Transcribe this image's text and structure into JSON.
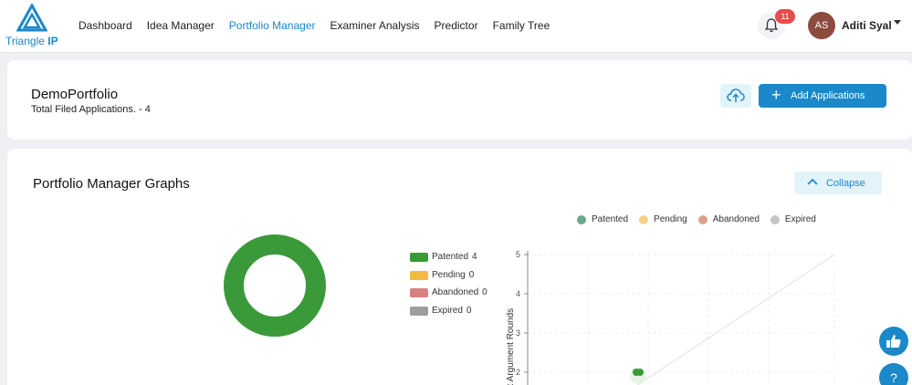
{
  "brand": {
    "name_part1": "Triangle",
    "name_part2": "IP"
  },
  "nav": {
    "items": [
      {
        "label": "Dashboard"
      },
      {
        "label": "Idea Manager"
      },
      {
        "label": "Portfolio Manager"
      },
      {
        "label": "Examiner Analysis"
      },
      {
        "label": "Predictor"
      },
      {
        "label": "Family Tree"
      }
    ],
    "active_index": 2
  },
  "notifications": {
    "count": "11",
    "icon": "bell-icon"
  },
  "user": {
    "initials": "AS",
    "name": "Aditi Syal"
  },
  "portfolio": {
    "title": "DemoPortfolio",
    "subtitle": "Total Filed Applications. - 4",
    "add_label": "Add Applications",
    "upload_icon": "cloud-upload-icon"
  },
  "graphs": {
    "title": "Portfolio Manager Graphs",
    "collapse_label": "Collapse"
  },
  "status_legend": [
    {
      "label": "Patented",
      "value": "4",
      "color": "#3a9a3a"
    },
    {
      "label": "Pending",
      "value": "0",
      "color": "#f5b942"
    },
    {
      "label": "Abandoned",
      "value": "0",
      "color": "#d98080"
    },
    {
      "label": "Expired",
      "value": "0",
      "color": "#9e9e9e"
    }
  ],
  "scatter_legend": [
    {
      "label": "Patented",
      "color": "#6aa88e"
    },
    {
      "label": "Pending",
      "color": "#f5d08a"
    },
    {
      "label": "Abandoned",
      "color": "#d9a48a"
    },
    {
      "label": "Expired",
      "color": "#c5c5c5"
    }
  ],
  "colors": {
    "accent": "#1a88c9"
  },
  "chart_data": [
    {
      "type": "pie",
      "variant": "donut",
      "categories": [
        "Patented",
        "Pending",
        "Abandoned",
        "Expired"
      ],
      "values": [
        4,
        0,
        0,
        0
      ]
    },
    {
      "type": "scatter",
      "ylabel": "...nt Argument Rounds",
      "yticks": [
        2,
        3,
        4,
        5
      ],
      "ylim_visible": [
        2,
        5
      ],
      "series": [
        {
          "name": "Patented",
          "points": [
            {
              "x": null,
              "y": 2
            }
          ]
        }
      ],
      "grid": true
    }
  ]
}
